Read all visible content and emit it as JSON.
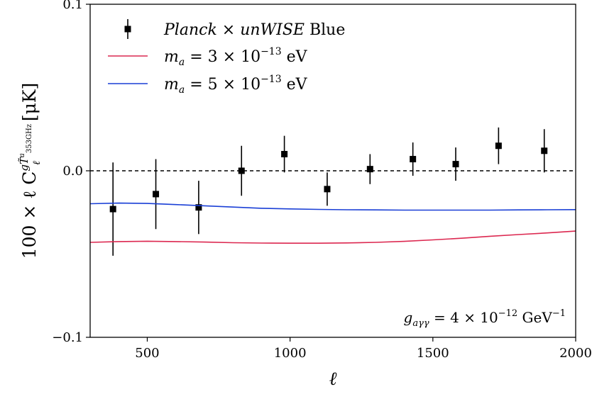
{
  "chart_data": {
    "type": "scatter",
    "xlabel": "ℓ",
    "ylabel": {
      "prefix": "100 × ℓ C",
      "sup": "gT̃",
      "sup_sub": "353GHz",
      "sup_sup": "a",
      "sub": "ℓ",
      "unit": "[μK]"
    },
    "xlim": [
      300,
      2000
    ],
    "ylim": [
      -0.1,
      0.1
    ],
    "xticks": [
      500,
      1000,
      1500,
      2000
    ],
    "ytick_labels": [
      {
        "value": 0.1,
        "label": "0.1"
      },
      {
        "value": 0.0,
        "label": "0.0"
      },
      {
        "value": -0.1,
        "label": "−0.1"
      }
    ],
    "reference_line": {
      "y": 0.0,
      "style": "dashed",
      "color": "#000000"
    },
    "legend_position": "top-left",
    "annotation": {
      "lhs": "g",
      "lhs_sub": "aγγ",
      "rhs": " = 4 × 10",
      "rhs_sup": "−12",
      "unit": " GeV",
      "unit_sup": "−1"
    },
    "series": [
      {
        "name": "Planck × unWISE Blue",
        "name_parts": {
          "a": "Planck",
          "b": " × ",
          "c": "unWISE",
          "d": " Blue"
        },
        "kind": "errorbar",
        "color": "#000000",
        "x": [
          380,
          530,
          680,
          830,
          980,
          1130,
          1280,
          1430,
          1580,
          1730,
          1890
        ],
        "y": [
          -0.023,
          -0.014,
          -0.022,
          0.0,
          0.01,
          -0.011,
          0.001,
          0.007,
          0.004,
          0.015,
          0.012
        ],
        "yerr": [
          0.028,
          0.021,
          0.016,
          0.015,
          0.011,
          0.01,
          0.009,
          0.01,
          0.01,
          0.011,
          0.013
        ]
      },
      {
        "name": "m_a = 3 × 10^-13 eV",
        "name_parts": {
          "a": "m",
          "a_sub": "a",
          "b": " = 3 × 10",
          "b_sup": "−13",
          "c": " eV"
        },
        "kind": "line",
        "color": "#dc2850",
        "x": [
          300,
          400,
          500,
          600,
          700,
          800,
          900,
          1000,
          1100,
          1200,
          1300,
          1400,
          1500,
          1600,
          1700,
          1800,
          1900,
          2000
        ],
        "y": [
          -0.043,
          -0.0425,
          -0.0423,
          -0.0425,
          -0.0428,
          -0.0432,
          -0.0434,
          -0.0435,
          -0.0435,
          -0.0433,
          -0.043,
          -0.0424,
          -0.0415,
          -0.0405,
          -0.0393,
          -0.0383,
          -0.0373,
          -0.0362
        ]
      },
      {
        "name": "m_a = 5 × 10^-13 eV",
        "name_parts": {
          "a": "m",
          "a_sub": "a",
          "b": " = 5 × 10",
          "b_sup": "−13",
          "c": " eV"
        },
        "kind": "line",
        "color": "#1a3fd6",
        "x": [
          300,
          400,
          500,
          600,
          700,
          800,
          900,
          1000,
          1100,
          1200,
          1300,
          1400,
          1500,
          1600,
          1700,
          1800,
          1900,
          2000
        ],
        "y": [
          -0.0198,
          -0.0194,
          -0.0196,
          -0.0203,
          -0.021,
          -0.0218,
          -0.0225,
          -0.0229,
          -0.0232,
          -0.0234,
          -0.0235,
          -0.0236,
          -0.0236,
          -0.0236,
          -0.0236,
          -0.0235,
          -0.0234,
          -0.0233
        ]
      }
    ]
  }
}
